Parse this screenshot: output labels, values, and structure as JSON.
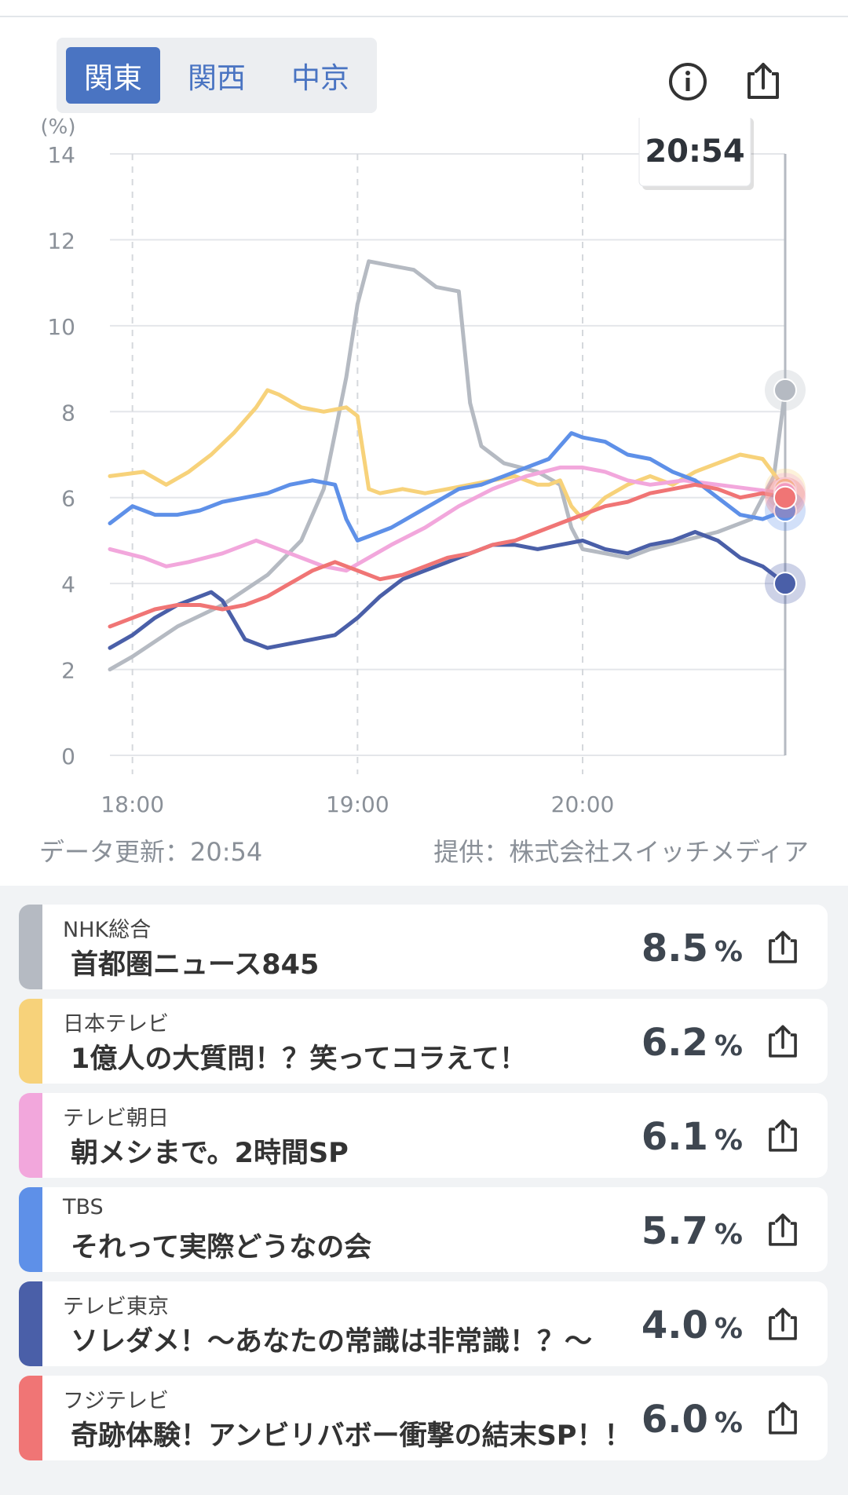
{
  "region_tabs": [
    {
      "label": "関東",
      "active": true
    },
    {
      "label": "関西",
      "active": false
    },
    {
      "label": "中京",
      "active": false
    }
  ],
  "header_icons": {
    "info": "info-icon",
    "share": "share-icon"
  },
  "chart_data": {
    "type": "line",
    "title": "",
    "ylabel": "(%)",
    "xlabel": "",
    "ylim": [
      0,
      14
    ],
    "yticks": [
      0,
      2,
      4,
      6,
      8,
      10,
      12,
      14
    ],
    "x_range": [
      -0.1,
      2.9
    ],
    "xticks": [
      {
        "label": "18:00",
        "x": 0
      },
      {
        "label": "19:00",
        "x": 1
      },
      {
        "label": "20:00",
        "x": 2
      }
    ],
    "current_x": 2.9,
    "tooltip": "20:54",
    "series": [
      {
        "name": "NHK総合",
        "color": "#b5bac2",
        "x": [
          -0.1,
          0,
          0.2,
          0.4,
          0.6,
          0.75,
          0.85,
          0.9,
          0.95,
          1.0,
          1.05,
          1.15,
          1.25,
          1.35,
          1.45,
          1.5,
          1.55,
          1.65,
          1.8,
          1.9,
          1.95,
          2.0,
          2.1,
          2.2,
          2.3,
          2.45,
          2.6,
          2.75,
          2.85,
          2.9
        ],
        "y": [
          2.0,
          2.3,
          3.0,
          3.5,
          4.2,
          5.0,
          6.2,
          7.5,
          8.8,
          10.5,
          11.5,
          11.4,
          11.3,
          10.9,
          10.8,
          8.2,
          7.2,
          6.8,
          6.6,
          6.3,
          5.3,
          4.8,
          4.7,
          4.6,
          4.8,
          5.0,
          5.2,
          5.5,
          6.5,
          8.5
        ]
      },
      {
        "name": "日本テレビ",
        "color": "#f7d27a",
        "x": [
          -0.1,
          0.05,
          0.15,
          0.25,
          0.35,
          0.45,
          0.55,
          0.6,
          0.65,
          0.75,
          0.85,
          0.95,
          1.0,
          1.05,
          1.1,
          1.2,
          1.3,
          1.4,
          1.5,
          1.6,
          1.7,
          1.8,
          1.85,
          1.9,
          1.95,
          2.0,
          2.1,
          2.2,
          2.3,
          2.4,
          2.5,
          2.6,
          2.7,
          2.8,
          2.9
        ],
        "y": [
          6.5,
          6.6,
          6.3,
          6.6,
          7.0,
          7.5,
          8.1,
          8.5,
          8.4,
          8.1,
          8.0,
          8.1,
          7.9,
          6.2,
          6.1,
          6.2,
          6.1,
          6.2,
          6.3,
          6.4,
          6.5,
          6.3,
          6.3,
          6.4,
          5.8,
          5.5,
          6.0,
          6.3,
          6.5,
          6.3,
          6.6,
          6.8,
          7.0,
          6.9,
          6.2
        ]
      },
      {
        "name": "テレビ朝日",
        "color": "#f2a7dc",
        "x": [
          -0.1,
          0.05,
          0.15,
          0.25,
          0.4,
          0.55,
          0.7,
          0.85,
          0.95,
          1.05,
          1.15,
          1.3,
          1.45,
          1.6,
          1.75,
          1.9,
          2.0,
          2.1,
          2.2,
          2.3,
          2.45,
          2.6,
          2.75,
          2.9
        ],
        "y": [
          4.8,
          4.6,
          4.4,
          4.5,
          4.7,
          5.0,
          4.7,
          4.4,
          4.3,
          4.6,
          4.9,
          5.3,
          5.8,
          6.2,
          6.5,
          6.7,
          6.7,
          6.6,
          6.4,
          6.3,
          6.4,
          6.3,
          6.2,
          6.1
        ]
      },
      {
        "name": "TBS",
        "color": "#5e90e8",
        "x": [
          -0.1,
          0,
          0.1,
          0.2,
          0.3,
          0.4,
          0.5,
          0.6,
          0.7,
          0.8,
          0.9,
          0.95,
          1.0,
          1.05,
          1.15,
          1.25,
          1.35,
          1.45,
          1.55,
          1.65,
          1.75,
          1.85,
          1.95,
          2.0,
          2.1,
          2.2,
          2.3,
          2.4,
          2.5,
          2.6,
          2.7,
          2.8,
          2.9
        ],
        "y": [
          5.4,
          5.8,
          5.6,
          5.6,
          5.7,
          5.9,
          6.0,
          6.1,
          6.3,
          6.4,
          6.3,
          5.5,
          5.0,
          5.1,
          5.3,
          5.6,
          5.9,
          6.2,
          6.3,
          6.5,
          6.7,
          6.9,
          7.5,
          7.4,
          7.3,
          7.0,
          6.9,
          6.6,
          6.4,
          6.0,
          5.6,
          5.5,
          5.7
        ]
      },
      {
        "name": "テレビ東京",
        "color": "#4a5fa8",
        "x": [
          -0.1,
          0,
          0.1,
          0.2,
          0.3,
          0.35,
          0.4,
          0.5,
          0.6,
          0.7,
          0.8,
          0.9,
          0.95,
          1.0,
          1.1,
          1.2,
          1.3,
          1.4,
          1.5,
          1.6,
          1.7,
          1.8,
          1.9,
          2.0,
          2.1,
          2.2,
          2.3,
          2.4,
          2.5,
          2.6,
          2.7,
          2.8,
          2.9
        ],
        "y": [
          2.5,
          2.8,
          3.2,
          3.5,
          3.7,
          3.8,
          3.6,
          2.7,
          2.5,
          2.6,
          2.7,
          2.8,
          3.0,
          3.2,
          3.7,
          4.1,
          4.3,
          4.5,
          4.7,
          4.9,
          4.9,
          4.8,
          4.9,
          5.0,
          4.8,
          4.7,
          4.9,
          5.0,
          5.2,
          5.0,
          4.6,
          4.4,
          4.0
        ]
      },
      {
        "name": "フジテレビ",
        "color": "#f07575",
        "x": [
          -0.1,
          0,
          0.1,
          0.2,
          0.3,
          0.4,
          0.5,
          0.6,
          0.7,
          0.8,
          0.9,
          1.0,
          1.1,
          1.2,
          1.3,
          1.4,
          1.5,
          1.6,
          1.7,
          1.8,
          1.9,
          2.0,
          2.1,
          2.2,
          2.3,
          2.4,
          2.5,
          2.6,
          2.7,
          2.8,
          2.9
        ],
        "y": [
          3.0,
          3.2,
          3.4,
          3.5,
          3.5,
          3.4,
          3.5,
          3.7,
          4.0,
          4.3,
          4.5,
          4.3,
          4.1,
          4.2,
          4.4,
          4.6,
          4.7,
          4.9,
          5.0,
          5.2,
          5.4,
          5.6,
          5.8,
          5.9,
          6.1,
          6.2,
          6.3,
          6.2,
          6.0,
          6.1,
          6.0
        ]
      }
    ]
  },
  "footer_meta": {
    "updated": "データ更新：20:54",
    "provider": "提供：株式会社スイッチメディア"
  },
  "channels": [
    {
      "channel": "NHK総合",
      "program": "首都圏ニュース845",
      "value": "8.5",
      "unit": "%",
      "color": "#b5bac2"
    },
    {
      "channel": "日本テレビ",
      "program": "1億人の大質問！？笑ってコラえて！",
      "value": "6.2",
      "unit": "%",
      "color": "#f7d27a"
    },
    {
      "channel": "テレビ朝日",
      "program": "朝メシまで。2時間SP",
      "value": "6.1",
      "unit": "%",
      "color": "#f2a7dc"
    },
    {
      "channel": "TBS",
      "program": "それって実際どうなの会",
      "value": "5.7",
      "unit": "%",
      "color": "#5e90e8"
    },
    {
      "channel": "テレビ東京",
      "program": "ソレダメ！～あなたの常識は非常識！？～",
      "value": "4.0",
      "unit": "%",
      "color": "#4a5fa8"
    },
    {
      "channel": "フジテレビ",
      "program": "奇跡体験！アンビリバボー衝撃の結末SP！！",
      "value": "6.0",
      "unit": "%",
      "color": "#f07575"
    }
  ]
}
